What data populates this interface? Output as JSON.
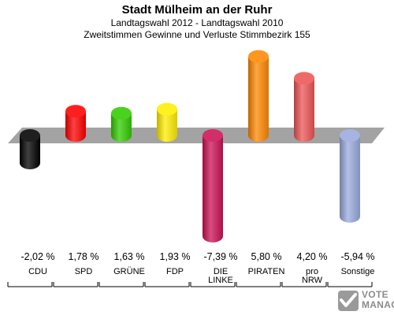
{
  "chart_data": {
    "type": "bar",
    "title": "Stadt Mülheim an der Ruhr",
    "subtitle": "Landtagswahl 2012 - Landtagswahl 2010",
    "subtitle2": "Zweitstimmen Gewinne und Verluste Stimmbezirk 155",
    "categories": [
      "CDU",
      "SPD",
      "GRÜNE",
      "FDP",
      "DIE LINKE",
      "PIRATEN",
      "pro NRW",
      "Sonstige"
    ],
    "category_lines": [
      [
        "CDU"
      ],
      [
        "SPD"
      ],
      [
        "GRÜNE"
      ],
      [
        "FDP"
      ],
      [
        "DIE",
        "LINKE"
      ],
      [
        "PIRATEN"
      ],
      [
        "pro",
        "NRW"
      ],
      [
        "Sonstige"
      ]
    ],
    "values": [
      -2.02,
      1.78,
      1.63,
      1.93,
      -7.39,
      5.8,
      4.2,
      -5.94
    ],
    "value_labels": [
      "-2,02 %",
      "1,78 %",
      "1,63 %",
      "1,93 %",
      "-7,39 %",
      "5,80 %",
      "4,20 %",
      "-5,94 %"
    ],
    "colors": [
      "#000000",
      "#ff0000",
      "#33cc00",
      "#ffee00",
      "#cc1155",
      "#ff8800",
      "#ee5555",
      "#99aadd"
    ],
    "grid": false,
    "legend": "none"
  },
  "watermark": {
    "line1": "VOTE",
    "line2": "MANAGER"
  }
}
